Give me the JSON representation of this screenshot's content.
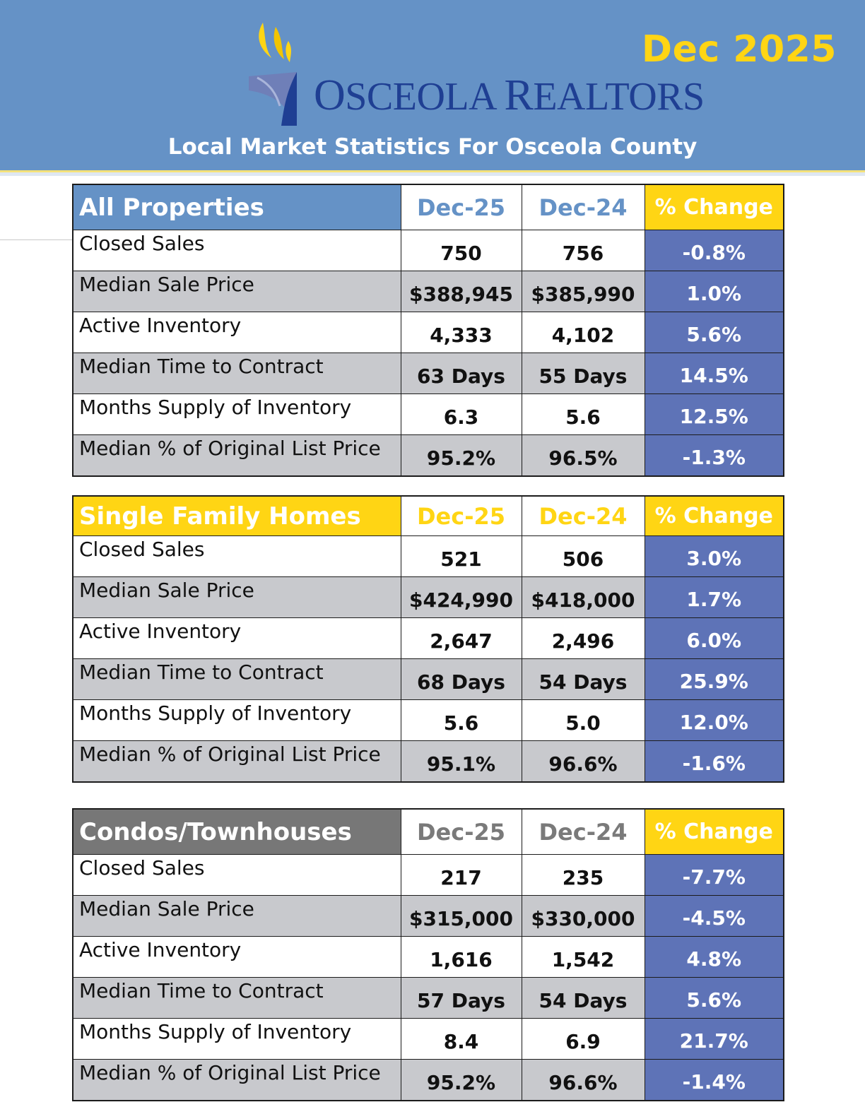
{
  "header": {
    "report_date": "Dec 2025",
    "brand": {
      "first_big": "O",
      "first_rest": "SCEOLA ",
      "second_big": "R",
      "second_rest": "EALTORS"
    },
    "subtitle": "Local Market Statistics For Osceola County"
  },
  "colors": {
    "header_blue": "#6592c6",
    "accent_yellow": "#ffd514",
    "change_blue": "#5e73b7",
    "row_gray": "#c8c9cd",
    "condo_gray": "#777777",
    "brand_navy": "#1f3f93"
  },
  "columns": {
    "current": "Dec-25",
    "previous": "Dec-24",
    "change": "% Change"
  },
  "tables": [
    {
      "title": "All Properties",
      "rows": [
        {
          "metric": "Closed Sales",
          "current": "750",
          "previous": "756",
          "change": "-0.8%"
        },
        {
          "metric": "Median Sale Price",
          "current": "$388,945",
          "previous": "$385,990",
          "change": "1.0%"
        },
        {
          "metric": "Active Inventory",
          "current": "4,333",
          "previous": "4,102",
          "change": "5.6%"
        },
        {
          "metric": "Median Time to Contract",
          "current": "63 Days",
          "previous": "55 Days",
          "change": "14.5%"
        },
        {
          "metric": "Months Supply of Inventory",
          "current": "6.3",
          "previous": "5.6",
          "change": "12.5%"
        },
        {
          "metric": "Median % of Original List Price",
          "current": "95.2%",
          "previous": "96.5%",
          "change": "-1.3%"
        }
      ]
    },
    {
      "title": "Single Family Homes",
      "rows": [
        {
          "metric": "Closed Sales",
          "current": "521",
          "previous": "506",
          "change": "3.0%"
        },
        {
          "metric": "Median Sale Price",
          "current": "$424,990",
          "previous": "$418,000",
          "change": "1.7%"
        },
        {
          "metric": "Active Inventory",
          "current": "2,647",
          "previous": "2,496",
          "change": "6.0%"
        },
        {
          "metric": "Median Time to Contract",
          "current": "68 Days",
          "previous": "54 Days",
          "change": "25.9%"
        },
        {
          "metric": "Months Supply of Inventory",
          "current": "5.6",
          "previous": "5.0",
          "change": "12.0%"
        },
        {
          "metric": "Median % of Original List Price",
          "current": "95.1%",
          "previous": "96.6%",
          "change": "-1.6%"
        }
      ]
    },
    {
      "title": "Condos/Townhouses",
      "rows": [
        {
          "metric": "Closed Sales",
          "current": "217",
          "previous": "235",
          "change": "-7.7%"
        },
        {
          "metric": "Median Sale Price",
          "current": "$315,000",
          "previous": "$330,000",
          "change": "-4.5%"
        },
        {
          "metric": "Active Inventory",
          "current": "1,616",
          "previous": "1,542",
          "change": "4.8%"
        },
        {
          "metric": "Median Time to Contract",
          "current": "57 Days",
          "previous": "54 Days",
          "change": "5.6%"
        },
        {
          "metric": "Months Supply of Inventory",
          "current": "8.4",
          "previous": "6.9",
          "change": "21.7%"
        },
        {
          "metric": "Median % of Original List Price",
          "current": "95.2%",
          "previous": "96.6%",
          "change": "-1.4%"
        }
      ]
    }
  ]
}
